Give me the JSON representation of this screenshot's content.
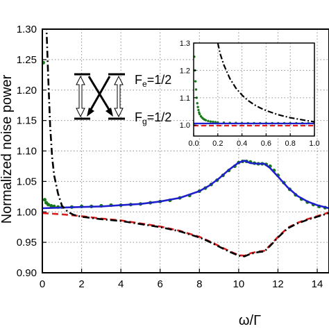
{
  "colors": {
    "blue": "#1f1fcc",
    "red": "#e01b1b",
    "black": "#000000",
    "green": "#1a7a1a",
    "grid": "#8c8c8c"
  },
  "chart_data": [
    {
      "type": "line",
      "xlabel": "ω/Γ",
      "ylabel": "Normalized noise power",
      "xlim": [
        0,
        14.6
      ],
      "ylim": [
        0.9,
        1.3
      ],
      "xticks": [
        "0",
        "2",
        "4",
        "6",
        "8",
        "10",
        "12",
        "14"
      ],
      "yticks": [
        "0.90",
        "0.95",
        "1.00",
        "1.05",
        "1.10",
        "1.15",
        "1.20",
        "1.25",
        "1.30"
      ],
      "grid": true,
      "series": [
        {
          "style": "dash-dot",
          "color": "black",
          "x": [
            0.2,
            0.3,
            0.4,
            0.5,
            0.6,
            0.8,
            1.0,
            1.3,
            1.6,
            2,
            3,
            4,
            5,
            6,
            7,
            8,
            8.5,
            9,
            9.5,
            10,
            10.3,
            10.6,
            11,
            11.3,
            11.6,
            12,
            12.5,
            13,
            13.5,
            14,
            14.6
          ],
          "y": [
            1.31,
            1.22,
            1.14,
            1.09,
            1.06,
            1.03,
            1.01,
            1.0,
            0.995,
            0.992,
            0.988,
            0.985,
            0.98,
            0.975,
            0.968,
            0.958,
            0.951,
            0.943,
            0.935,
            0.928,
            0.927,
            0.931,
            0.934,
            0.935,
            0.944,
            0.958,
            0.973,
            0.981,
            0.987,
            0.992,
            0.998
          ]
        },
        {
          "style": "dashed",
          "color": "red",
          "x": [
            0,
            1,
            2,
            3,
            4,
            5,
            6,
            7,
            8,
            8.5,
            9,
            9.5,
            10,
            10.3,
            10.6,
            11,
            11.3,
            11.6,
            12,
            12.5,
            13,
            13.5,
            14,
            14.6
          ],
          "y": [
            0.998,
            0.996,
            0.993,
            0.989,
            0.986,
            0.981,
            0.976,
            0.969,
            0.959,
            0.952,
            0.944,
            0.936,
            0.929,
            0.928,
            0.932,
            0.935,
            0.936,
            0.945,
            0.959,
            0.974,
            0.982,
            0.988,
            0.993,
            0.999
          ]
        },
        {
          "style": "solid",
          "color": "blue",
          "x": [
            0,
            1,
            2,
            3,
            4,
            5,
            6,
            7,
            8,
            8.5,
            9,
            9.5,
            10,
            10.3,
            10.6,
            11,
            11.3,
            11.6,
            12,
            12.5,
            13,
            13.5,
            14,
            14.6
          ],
          "y": [
            1.006,
            1.007,
            1.008,
            1.009,
            1.011,
            1.013,
            1.017,
            1.023,
            1.034,
            1.043,
            1.055,
            1.069,
            1.081,
            1.084,
            1.08,
            1.079,
            1.079,
            1.072,
            1.058,
            1.04,
            1.026,
            1.017,
            1.011,
            1.006
          ]
        },
        {
          "style": "dots",
          "color": "green",
          "x": [
            0.05,
            0.12,
            0.2,
            0.3,
            0.45,
            0.6,
            0.8,
            1,
            1.5,
            2,
            2.5,
            3,
            3.5,
            4,
            4.5,
            5,
            5.5,
            6,
            6.5,
            7,
            7.5,
            8,
            8.3,
            8.6,
            8.9,
            9.2,
            9.5,
            9.8,
            10,
            10.2,
            10.4,
            10.6,
            10.8,
            11,
            11.2,
            11.4,
            11.6,
            11.8,
            12,
            12.3,
            12.6,
            12.9,
            13.2,
            13.5,
            13.8,
            14.1,
            14.4
          ],
          "y": [
            1.245,
            1.02,
            1.015,
            1.012,
            1.01,
            1.009,
            1.008,
            1.008,
            1.008,
            1.009,
            1.009,
            1.01,
            1.011,
            1.011,
            1.012,
            1.013,
            1.015,
            1.017,
            1.019,
            1.023,
            1.027,
            1.034,
            1.039,
            1.045,
            1.052,
            1.06,
            1.068,
            1.075,
            1.081,
            1.083,
            1.083,
            1.082,
            1.08,
            1.079,
            1.079,
            1.078,
            1.075,
            1.068,
            1.06,
            1.048,
            1.037,
            1.028,
            1.021,
            1.016,
            1.012,
            1.009,
            1.007
          ]
        }
      ]
    },
    {
      "type": "line",
      "xlim": [
        0,
        1.0
      ],
      "ylim": [
        0.96,
        1.3
      ],
      "xticks": [
        "0.0",
        "0.2",
        "0.4",
        "0.6",
        "0.8",
        "1.0"
      ],
      "yticks": [
        "1.0",
        "1.1",
        "1.2",
        "1.3"
      ],
      "grid": true,
      "series": [
        {
          "style": "dash-dot",
          "color": "black",
          "x": [
            0.2,
            0.22,
            0.25,
            0.3,
            0.35,
            0.4,
            0.45,
            0.5,
            0.55,
            0.6,
            0.7,
            0.8,
            0.9,
            1.0
          ],
          "y": [
            1.3,
            1.26,
            1.22,
            1.17,
            1.135,
            1.11,
            1.09,
            1.075,
            1.063,
            1.053,
            1.038,
            1.027,
            1.019,
            1.012
          ]
        },
        {
          "style": "dashed",
          "color": "red",
          "x": [
            0,
            0.1,
            0.2,
            0.3,
            0.4,
            0.5,
            0.6,
            0.7,
            0.8,
            0.9,
            1.0
          ],
          "y": [
            0.998,
            0.998,
            0.998,
            0.998,
            0.998,
            0.998,
            0.998,
            0.998,
            0.998,
            0.998,
            0.998
          ]
        },
        {
          "style": "solid",
          "color": "blue",
          "x": [
            0,
            0.1,
            0.2,
            0.3,
            0.4,
            0.5,
            0.6,
            0.7,
            0.8,
            0.9,
            1.0
          ],
          "y": [
            1.006,
            1.006,
            1.006,
            1.006,
            1.006,
            1.006,
            1.006,
            1.006,
            1.006,
            1.006,
            1.006
          ]
        },
        {
          "style": "dots",
          "color": "green",
          "x": [
            0.005,
            0.01,
            0.015,
            0.02,
            0.025,
            0.03,
            0.035,
            0.04,
            0.045,
            0.05,
            0.06,
            0.07,
            0.08,
            0.09,
            0.1,
            0.12,
            0.14,
            0.16,
            0.18,
            0.2,
            0.25,
            0.3,
            0.35,
            0.4,
            0.45,
            0.5,
            0.55,
            0.6,
            0.65,
            0.7,
            0.75,
            0.8,
            0.85,
            0.9,
            0.95,
            1.0
          ],
          "y": [
            1.25,
            1.2,
            1.16,
            1.13,
            1.1,
            1.08,
            1.066,
            1.055,
            1.046,
            1.04,
            1.032,
            1.027,
            1.023,
            1.02,
            1.018,
            1.015,
            1.013,
            1.012,
            1.011,
            1.01,
            1.009,
            1.008,
            1.008,
            1.007,
            1.007,
            1.007,
            1.007,
            1.007,
            1.007,
            1.007,
            1.007,
            1.007,
            1.007,
            1.007,
            1.007,
            1.007
          ]
        }
      ]
    }
  ],
  "diagram": {
    "upper_label": "F",
    "upper_sub": "e",
    "upper_val": "=1/2",
    "lower_label": "F",
    "lower_sub": "g",
    "lower_val": "=1/2"
  }
}
